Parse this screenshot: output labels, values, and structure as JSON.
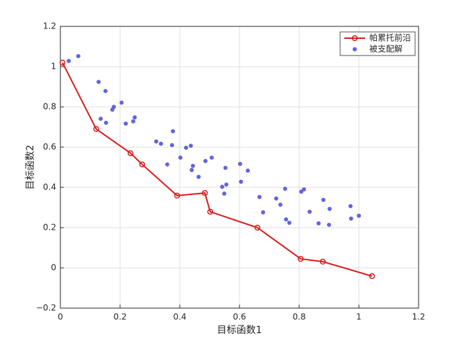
{
  "chart_data": {
    "type": "scatter",
    "xlabel": "目标函数1",
    "ylabel": "目标函数2",
    "xlim": [
      0,
      1.2
    ],
    "ylim": [
      -0.2,
      1.2
    ],
    "xticks": [
      0,
      0.2,
      0.4,
      0.6,
      0.8,
      1,
      1.2
    ],
    "yticks": [
      {
        "value": -0.2,
        "label": "−0.2"
      },
      0,
      0.2,
      0.4,
      0.6,
      0.8,
      1,
      1.2
    ],
    "grid": true,
    "legend": "upper right",
    "series": [
      {
        "name": "帕累托前沿",
        "type": "line",
        "color": "#d91a1a",
        "x": [
          0.007,
          0.12,
          0.235,
          0.274,
          0.391,
          0.484,
          0.502,
          0.66,
          0.805,
          0.879,
          1.044
        ],
        "values": [
          1.02,
          0.69,
          0.57,
          0.514,
          0.359,
          0.372,
          0.279,
          0.2,
          0.045,
          0.031,
          -0.041
        ]
      },
      {
        "name": "被支配解",
        "type": "scatter",
        "color": "#6464dc",
        "x": [
          0.028,
          0.06,
          0.128,
          0.151,
          0.135,
          0.153,
          0.174,
          0.179,
          0.205,
          0.219,
          0.244,
          0.249,
          0.321,
          0.337,
          0.377,
          0.374,
          0.358,
          0.402,
          0.421,
          0.437,
          0.444,
          0.44,
          0.463,
          0.486,
          0.507,
          0.553,
          0.542,
          0.556,
          0.549,
          0.602,
          0.605,
          0.628,
          0.667,
          0.679,
          0.723,
          0.737,
          0.753,
          0.756,
          0.767,
          0.807,
          0.816,
          0.835,
          0.865,
          0.881,
          0.9,
          0.902,
          0.972,
          0.974,
          1.0
        ],
        "values": [
          1.028,
          1.052,
          0.924,
          0.879,
          0.741,
          0.721,
          0.786,
          0.8,
          0.821,
          0.717,
          0.728,
          0.748,
          0.628,
          0.617,
          0.679,
          0.61,
          0.514,
          0.548,
          0.597,
          0.607,
          0.507,
          0.486,
          0.452,
          0.531,
          0.548,
          0.497,
          0.403,
          0.414,
          0.369,
          0.517,
          0.428,
          0.483,
          0.352,
          0.276,
          0.345,
          0.314,
          0.393,
          0.241,
          0.224,
          0.379,
          0.39,
          0.279,
          0.221,
          0.338,
          0.214,
          0.293,
          0.307,
          0.245,
          0.259
        ]
      }
    ]
  }
}
